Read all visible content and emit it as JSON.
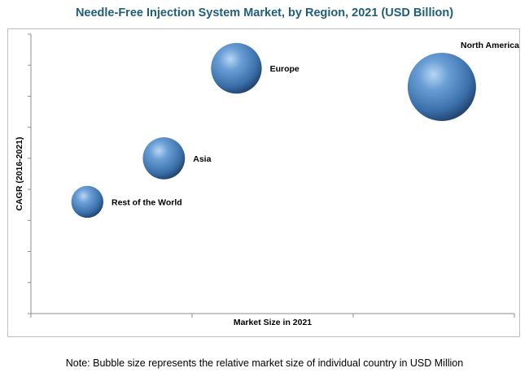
{
  "chart_data": {
    "type": "scatter",
    "title": "Needle-Free Injection System Market, by Region, 2021 (USD Billion)",
    "xlabel": "Market Size in 2021",
    "ylabel": "CAGR (2016-2021)",
    "grid": false,
    "points": [
      {
        "label": "North America",
        "x": 5.1,
        "y": 7.3,
        "size": 1.0
      },
      {
        "label": "Europe",
        "x": 2.55,
        "y": 7.9,
        "size": 0.55
      },
      {
        "label": "Asia",
        "x": 1.65,
        "y": 5.0,
        "size": 0.38
      },
      {
        "label": "Rest of the World",
        "x": 0.7,
        "y": 3.6,
        "size": 0.22
      }
    ],
    "xlim": [
      0,
      6
    ],
    "ylim": [
      0,
      9
    ]
  },
  "note": "Note: Bubble size represents the relative market size of individual country in USD Million"
}
